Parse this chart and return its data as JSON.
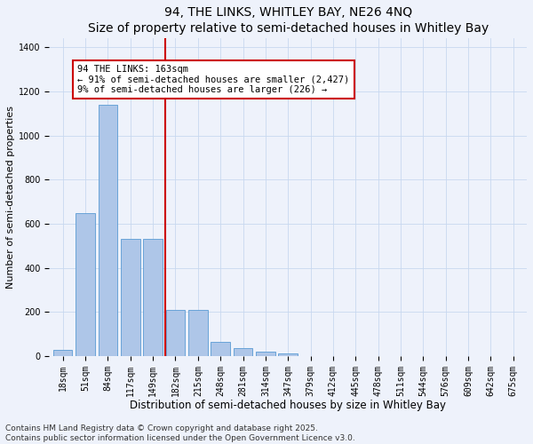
{
  "title": "94, THE LINKS, WHITLEY BAY, NE26 4NQ",
  "subtitle": "Size of property relative to semi-detached houses in Whitley Bay",
  "xlabel": "Distribution of semi-detached houses by size in Whitley Bay",
  "ylabel": "Number of semi-detached properties",
  "categories": [
    "18sqm",
    "51sqm",
    "84sqm",
    "117sqm",
    "149sqm",
    "182sqm",
    "215sqm",
    "248sqm",
    "281sqm",
    "314sqm",
    "347sqm",
    "379sqm",
    "412sqm",
    "445sqm",
    "478sqm",
    "511sqm",
    "544sqm",
    "576sqm",
    "609sqm",
    "642sqm",
    "675sqm"
  ],
  "values": [
    28,
    648,
    1140,
    530,
    530,
    210,
    210,
    65,
    35,
    20,
    13,
    0,
    0,
    0,
    0,
    0,
    0,
    0,
    0,
    0,
    0
  ],
  "bar_color": "#aec6e8",
  "bar_edge_color": "#5a9bd4",
  "vline_x": 4.55,
  "vline_color": "#cc0000",
  "annotation_line1": "94 THE LINKS: 163sqm",
  "annotation_line2": "← 91% of semi-detached houses are smaller (2,427)",
  "annotation_line3": "9% of semi-detached houses are larger (226) →",
  "annotation_box_color": "#cc0000",
  "ylim": [
    0,
    1440
  ],
  "background_color": "#eef2fb",
  "footer": "Contains HM Land Registry data © Crown copyright and database right 2025.\nContains public sector information licensed under the Open Government Licence v3.0.",
  "title_fontsize": 10,
  "xlabel_fontsize": 8.5,
  "ylabel_fontsize": 8,
  "tick_fontsize": 7,
  "annotation_fontsize": 7.5,
  "footer_fontsize": 6.5
}
